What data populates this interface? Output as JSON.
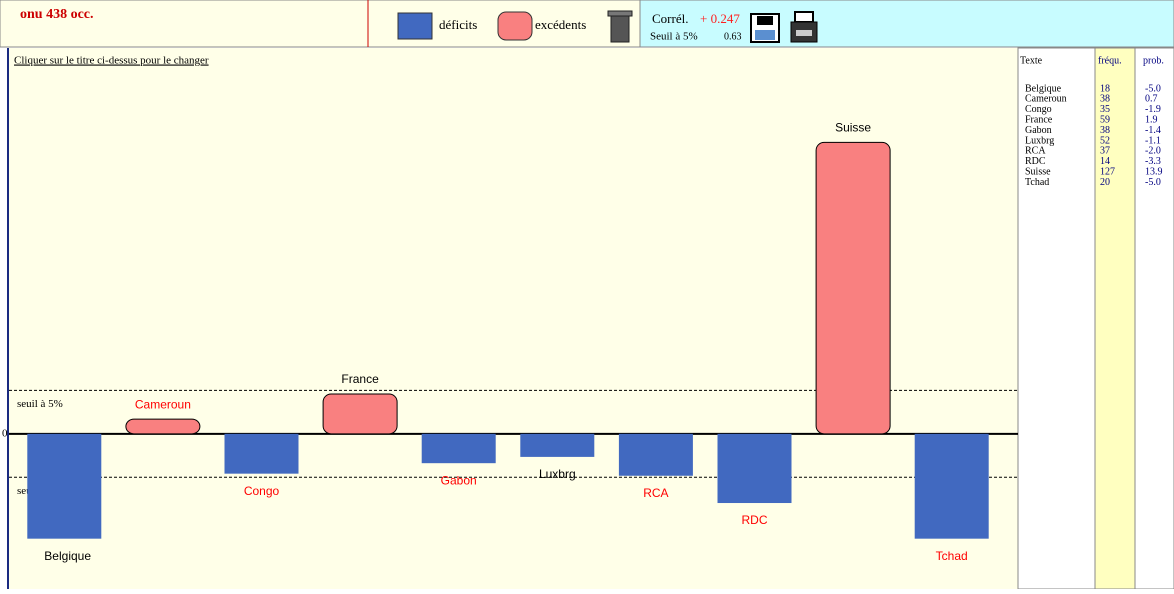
{
  "header": {
    "title": "onu 438 occ.",
    "legend": [
      "déficits",
      "excédents"
    ],
    "correlation_label": "Corrél.",
    "correlation_value": "+ 0.247",
    "threshold_label": "Seuil à 5%",
    "threshold_value": "0.63"
  },
  "hint": "Cliquer sur le titre ci-dessus pour le changer",
  "chart_data": {
    "type": "bar",
    "categories": [
      "Belgique",
      "Cameroun",
      "Congo",
      "France",
      "Gabon",
      "Luxbrg",
      "RCA",
      "RDC",
      "Suisse",
      "Tchad"
    ],
    "values": [
      -5.0,
      0.7,
      -1.9,
      1.9,
      -1.4,
      -1.1,
      -2.0,
      -3.3,
      13.9,
      -5.0
    ],
    "value_labels": [
      "-5.0",
      "0.7",
      "-1.9",
      "1.9",
      "-1.4",
      "-1.1",
      "-2.0",
      "-3.3",
      "13.9",
      "-5.0"
    ],
    "label_colors": [
      "#000000",
      "#ff0000",
      "#ff0000",
      "#000000",
      "#ff0000",
      "#000000",
      "#ff0000",
      "#ff0000",
      "#000000",
      "#ff0000"
    ],
    "colors": {
      "negative": "#4169c0",
      "positive": "#f98080"
    },
    "ylim": [
      -7.4,
      18.4
    ],
    "yticks": [
      0
    ],
    "threshold": 2.07,
    "threshold_text": "seuil à 5%"
  },
  "table": {
    "headers": [
      "Texte",
      "fréqu.",
      "prob."
    ],
    "frequencies": [
      18,
      38,
      35,
      59,
      38,
      52,
      37,
      14,
      127,
      20
    ]
  }
}
